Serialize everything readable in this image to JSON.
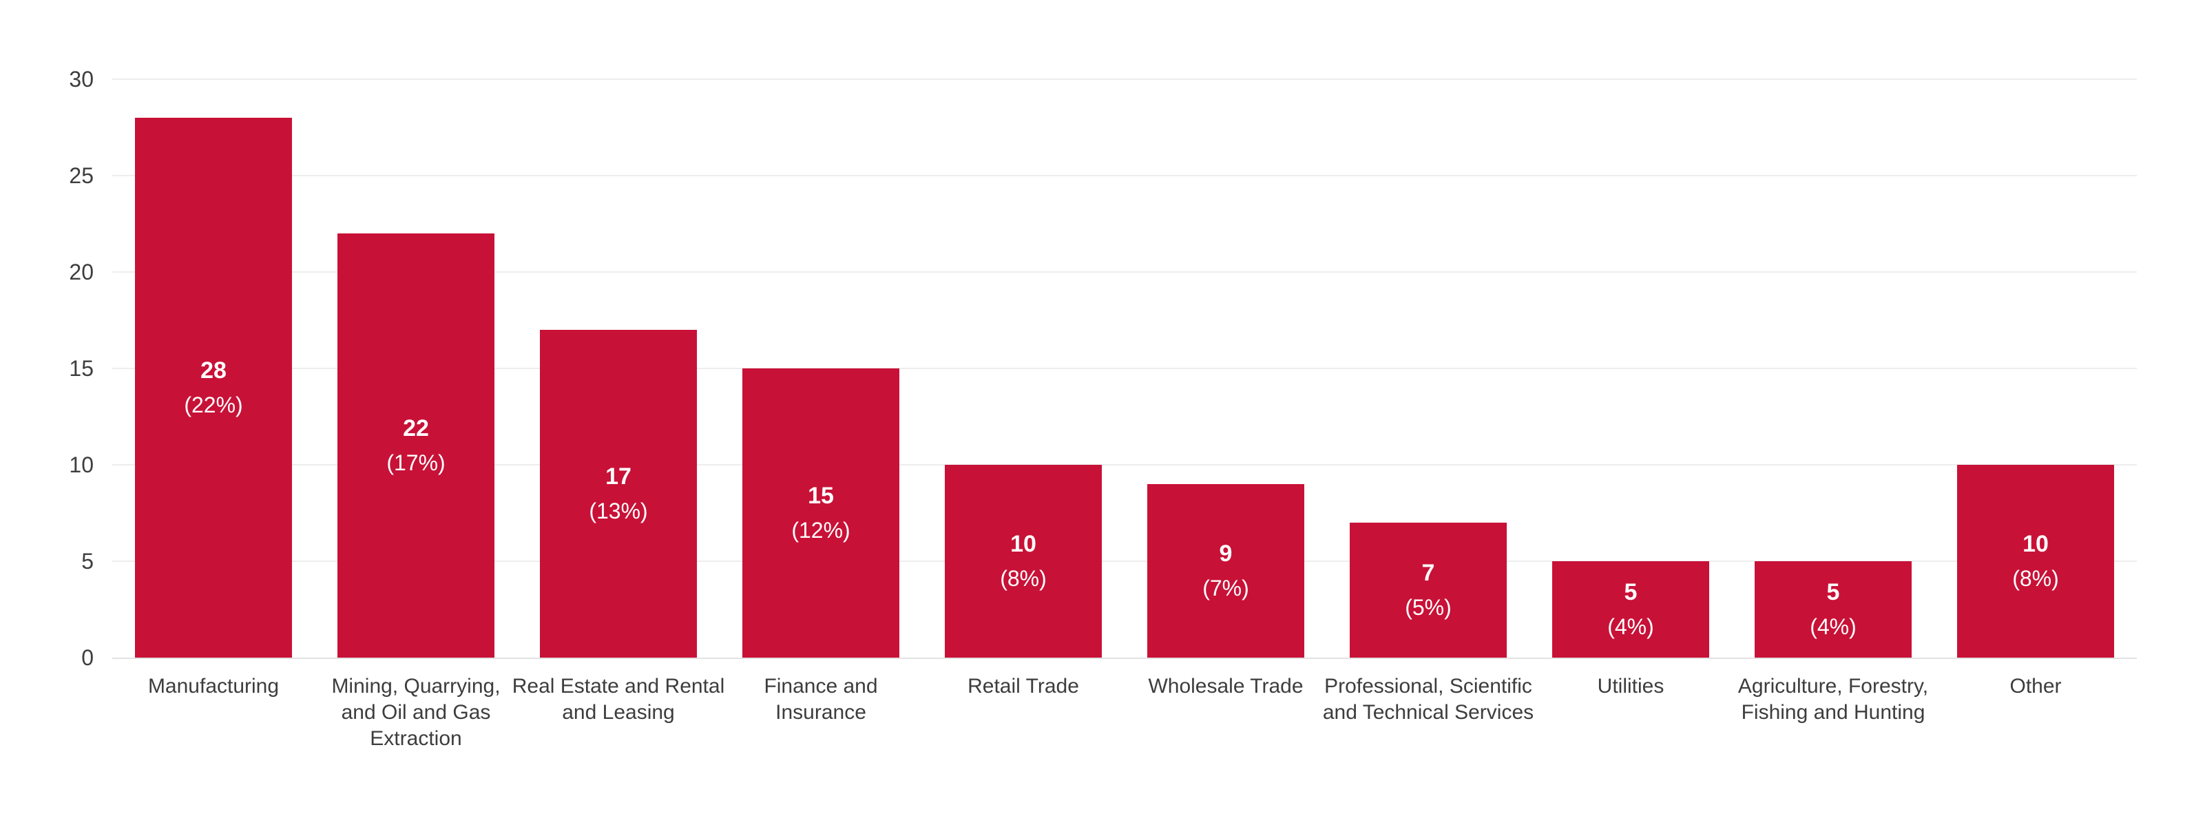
{
  "chart_data": {
    "type": "bar",
    "title": "",
    "xlabel": "",
    "ylabel": "",
    "categories": [
      "Manufacturing",
      "Mining, Quarrying, and Oil and Gas Extraction",
      "Real Estate and Rental and Leasing",
      "Finance and Insurance",
      "Retail Trade",
      "Wholesale Trade",
      "Professional, Scientific and Technical Services",
      "Utilities",
      "Agriculture, Forestry, Fishing and Hunting",
      "Other"
    ],
    "categories_display": [
      "Manufacturing",
      "Mining, Quarrying,\nand Oil and Gas\nExtraction",
      "Real Estate and Rental\nand Leasing",
      "Finance and\nInsurance",
      "Retail Trade",
      "Wholesale Trade",
      "Professional, Scientific\nand Technical Services",
      "Utilities",
      "Agriculture, Forestry,\nFishing and Hunting",
      "Other"
    ],
    "values": [
      28,
      22,
      17,
      15,
      10,
      9,
      7,
      5,
      5,
      10
    ],
    "percent_labels": [
      "(22%)",
      "(17%)",
      "(13%)",
      "(12%)",
      "(8%)",
      "(7%)",
      "(5%)",
      "(4%)",
      "(4%)",
      "(8%)"
    ],
    "yticks": [
      0,
      5,
      10,
      15,
      20,
      25,
      30
    ],
    "ylim": [
      0,
      30
    ],
    "grid": "horizontal",
    "legend": "none",
    "colors": {
      "bar": "#c81137",
      "gridline": "#ededed",
      "axis_line": "#e2e2e2",
      "tick_text": "#3d3d3d",
      "value_text": "#ffffff"
    }
  }
}
